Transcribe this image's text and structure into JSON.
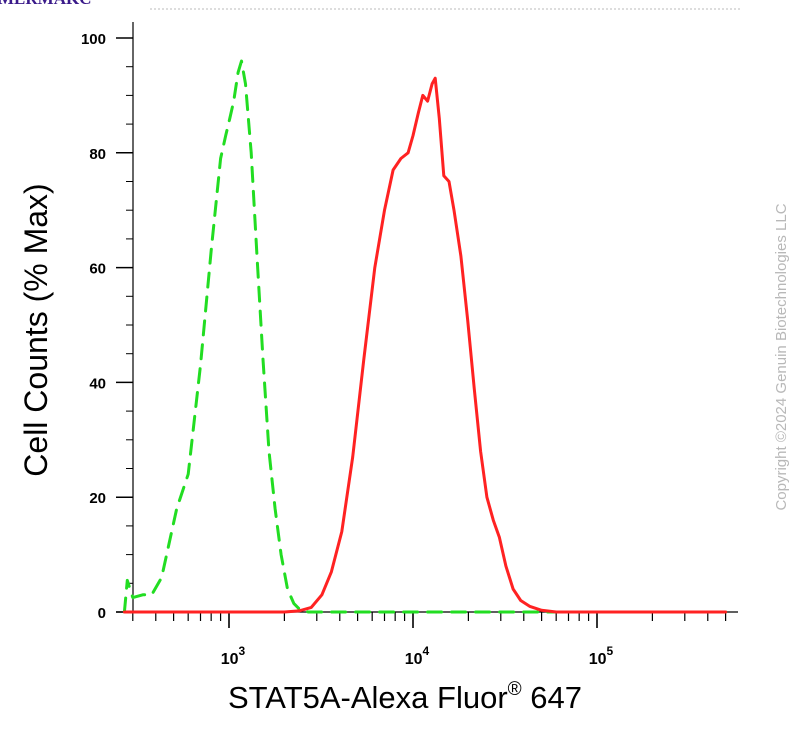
{
  "chart_data": {
    "type": "line",
    "title": "",
    "xlabel_main": "STAT5A-Alexa Fluor",
    "xlabel_super": "®",
    "xlabel_suffix": " 647",
    "ylabel": "Cell Counts (% Max)",
    "x_scale": "log",
    "xlim": [
      270,
      500000
    ],
    "ylim": [
      0,
      100
    ],
    "yticks": [
      0,
      20,
      40,
      60,
      80,
      100
    ],
    "xticks": [
      {
        "value": 1000,
        "base": "10",
        "exp": "3"
      },
      {
        "value": 10000,
        "base": "10",
        "exp": "4"
      },
      {
        "value": 100000,
        "base": "10",
        "exp": "5"
      }
    ],
    "series": [
      {
        "color": "#22dd22",
        "style": "dashed",
        "points": [
          [
            270,
            0
          ],
          [
            280,
            5.5
          ],
          [
            300,
            2.5
          ],
          [
            340,
            3.0
          ],
          [
            380,
            3.0
          ],
          [
            430,
            6
          ],
          [
            520,
            18
          ],
          [
            600,
            24
          ],
          [
            700,
            43
          ],
          [
            800,
            63
          ],
          [
            900,
            79
          ],
          [
            960,
            83
          ],
          [
            1010,
            86
          ],
          [
            1060,
            89
          ],
          [
            1120,
            94
          ],
          [
            1170,
            96
          ],
          [
            1230,
            92
          ],
          [
            1320,
            80
          ],
          [
            1420,
            62
          ],
          [
            1530,
            44
          ],
          [
            1650,
            28
          ],
          [
            1780,
            18
          ],
          [
            1920,
            10
          ],
          [
            2080,
            4
          ],
          [
            2250,
            1.5
          ],
          [
            2450,
            0.3
          ],
          [
            2700,
            0
          ],
          [
            5000,
            0
          ],
          [
            500000,
            0
          ]
        ]
      },
      {
        "color": "#ff2222",
        "style": "solid",
        "points": [
          [
            270,
            0
          ],
          [
            2000,
            0
          ],
          [
            2400,
            0.2
          ],
          [
            2800,
            0.8
          ],
          [
            3200,
            3
          ],
          [
            3600,
            7
          ],
          [
            4100,
            14
          ],
          [
            4700,
            27
          ],
          [
            5400,
            44
          ],
          [
            6200,
            60
          ],
          [
            7000,
            70
          ],
          [
            7800,
            77
          ],
          [
            8600,
            79
          ],
          [
            9400,
            80
          ],
          [
            10000,
            83
          ],
          [
            10700,
            87
          ],
          [
            11300,
            90
          ],
          [
            12000,
            89
          ],
          [
            12700,
            92
          ],
          [
            13200,
            93
          ],
          [
            13900,
            86
          ],
          [
            14700,
            76
          ],
          [
            15700,
            75
          ],
          [
            16700,
            70
          ],
          [
            18200,
            62
          ],
          [
            19800,
            51
          ],
          [
            21500,
            39
          ],
          [
            23300,
            28
          ],
          [
            25200,
            20
          ],
          [
            27300,
            16
          ],
          [
            29500,
            13
          ],
          [
            32000,
            8
          ],
          [
            35000,
            4
          ],
          [
            38500,
            2
          ],
          [
            43000,
            1
          ],
          [
            50000,
            0.3
          ],
          [
            60000,
            0
          ],
          [
            500000,
            0
          ]
        ]
      }
    ]
  },
  "watermark": "Copyright ©2024 Genuin Biotechnologies LLC",
  "header_fragment": "MERMAKC"
}
